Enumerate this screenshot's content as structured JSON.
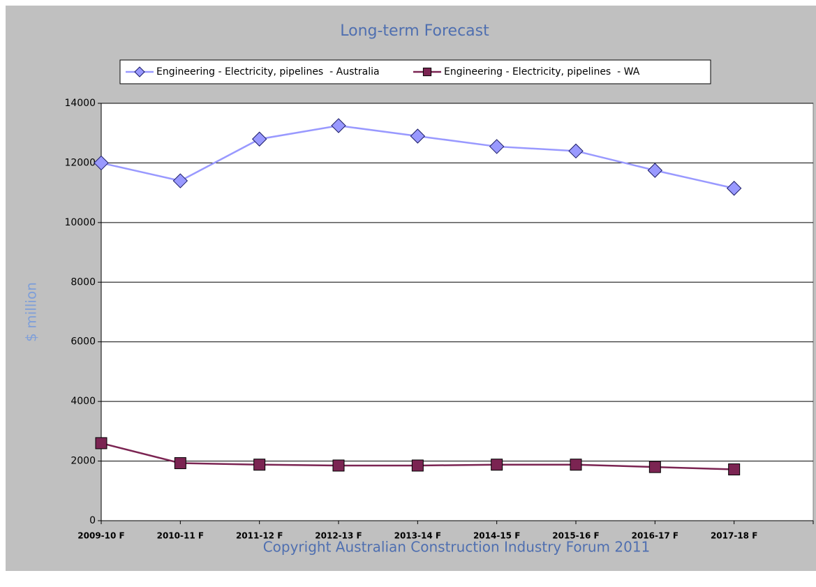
{
  "chart_data": {
    "type": "line",
    "title": "Long-term Forecast",
    "ylabel": "$ million",
    "footer": "Copyright Australian Construction Industry Forum 2011",
    "categories": [
      "2009-10 F",
      "2010-11 F",
      "2011-12 F",
      "2012-13 F",
      "2013-14 F",
      "2014-15 F",
      "2015-16 F",
      "2016-17 F",
      "2017-18 F"
    ],
    "series": [
      {
        "name": "Engineering - Electricity, pipelines  - Australia",
        "color": "#9999ff",
        "marker": "diamond",
        "values": [
          12000,
          11400,
          12800,
          13250,
          12900,
          12550,
          12400,
          11750,
          11150
        ]
      },
      {
        "name": "Engineering - Electricity, pipelines  - WA",
        "color": "#7b2452",
        "marker": "square",
        "values": [
          2600,
          1930,
          1880,
          1850,
          1850,
          1880,
          1880,
          1800,
          1720
        ]
      }
    ],
    "ylim": [
      0,
      14000
    ],
    "yticks": [
      0,
      2000,
      4000,
      6000,
      8000,
      10000,
      12000,
      14000
    ],
    "grid": true,
    "legend": "top"
  }
}
